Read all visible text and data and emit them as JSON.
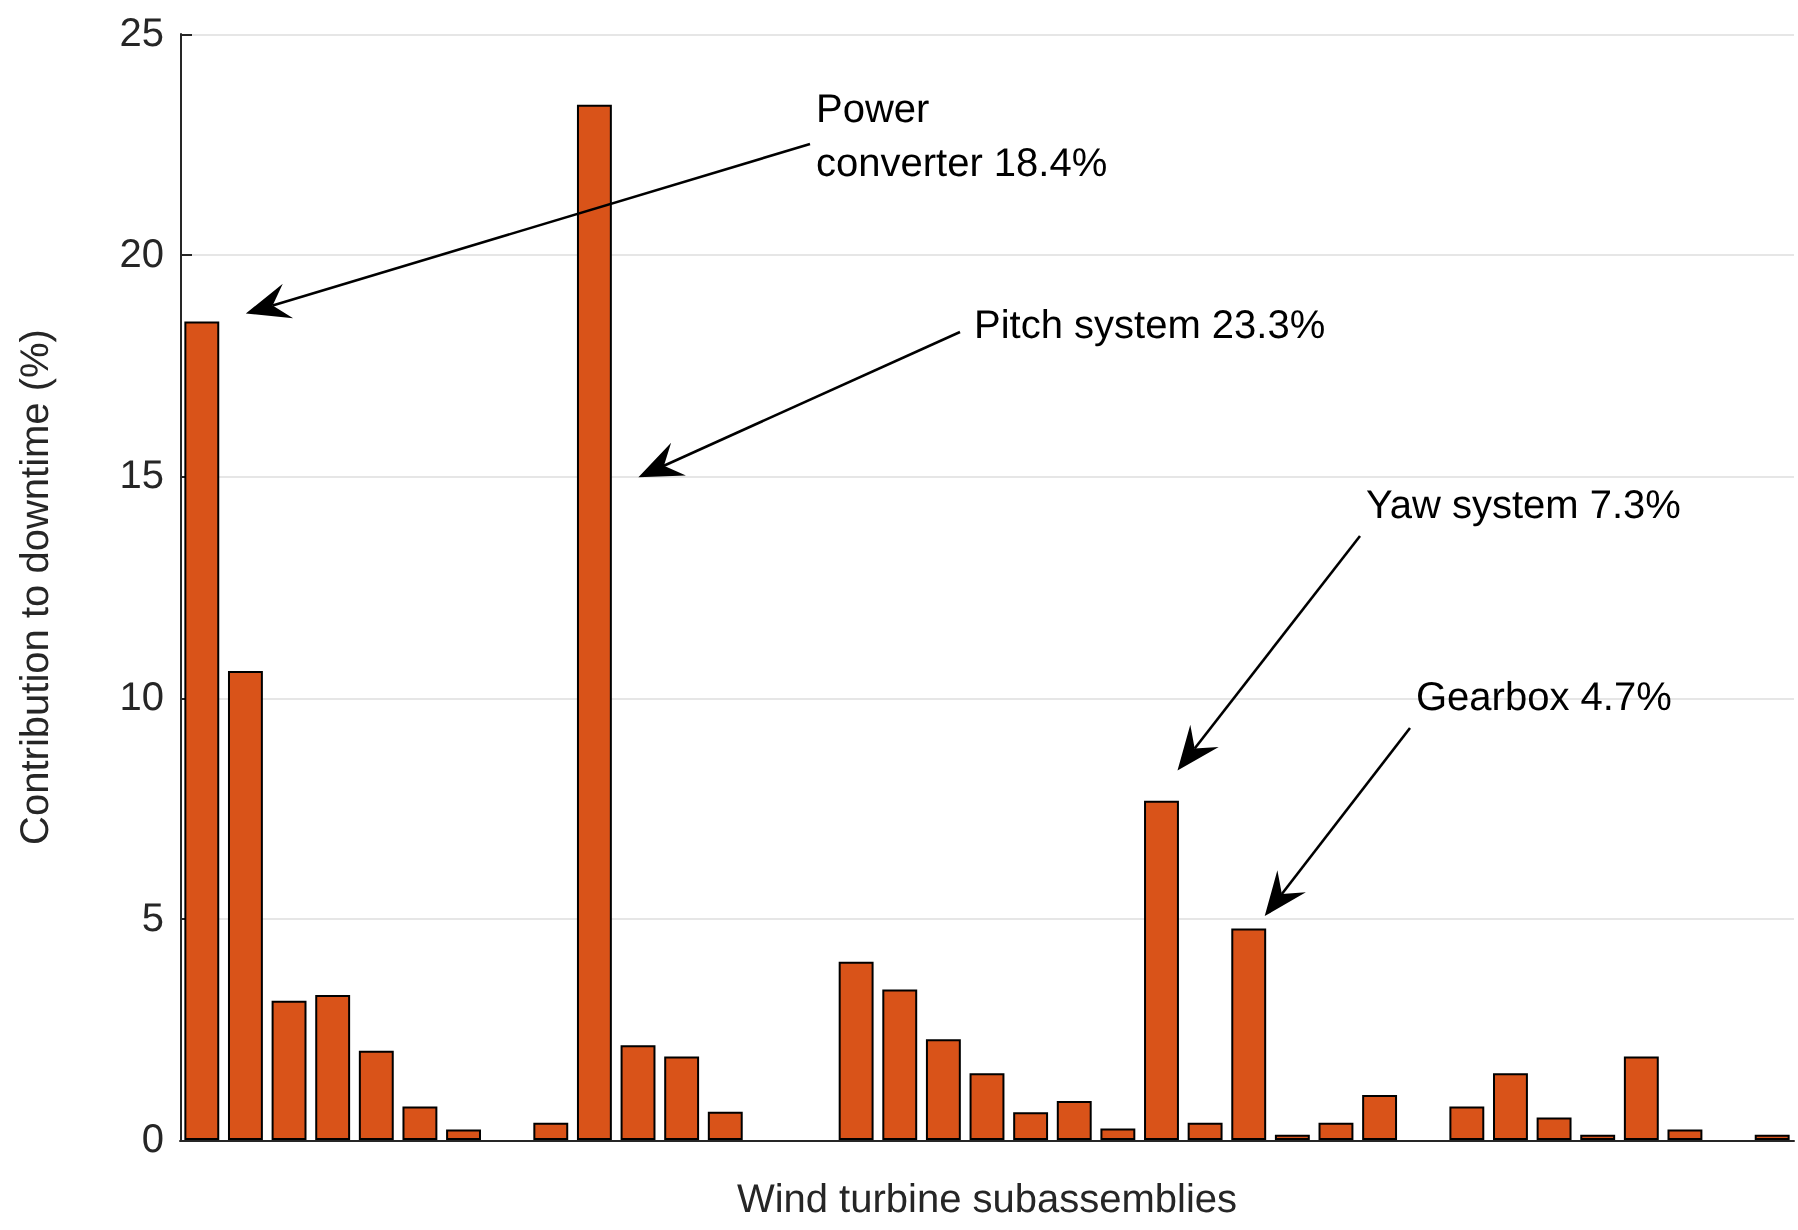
{
  "chart_data": {
    "type": "bar",
    "xlabel": "Wind turbine subassemblies",
    "ylabel": "Contribution to downtime (%)",
    "categories": [
      null,
      null,
      null,
      null,
      null,
      null,
      null,
      null,
      null,
      null,
      null,
      null,
      null,
      null,
      null,
      null,
      null,
      null,
      null,
      null,
      null,
      null,
      null,
      null,
      null,
      null,
      null,
      null,
      null,
      null,
      null,
      null,
      null,
      null,
      null,
      null,
      null
    ],
    "values": [
      18.5,
      10.6,
      3.15,
      3.28,
      2.02,
      0.76,
      0.24,
      0,
      0.39,
      23.4,
      2.14,
      1.89,
      0.64,
      0,
      0,
      4.03,
      3.4,
      2.28,
      1.51,
      0.63,
      0.88,
      0.26,
      7.67,
      0.39,
      4.78,
      0.12,
      0.39,
      1.02,
      0,
      0.76,
      1.51,
      0.51,
      0.12,
      1.89,
      0.24,
      0,
      0.12
    ],
    "color": "#d95319",
    "ylim": [
      0,
      25
    ],
    "yticks": [
      0,
      5,
      10,
      15,
      20,
      25
    ],
    "grid": "y",
    "tick_labels": "y",
    "annotations": [
      "Power\nconverter 18.4%",
      "Pitch system 23.3%",
      "Yaw system 7.3%",
      "Gearbox 4.7%"
    ]
  }
}
